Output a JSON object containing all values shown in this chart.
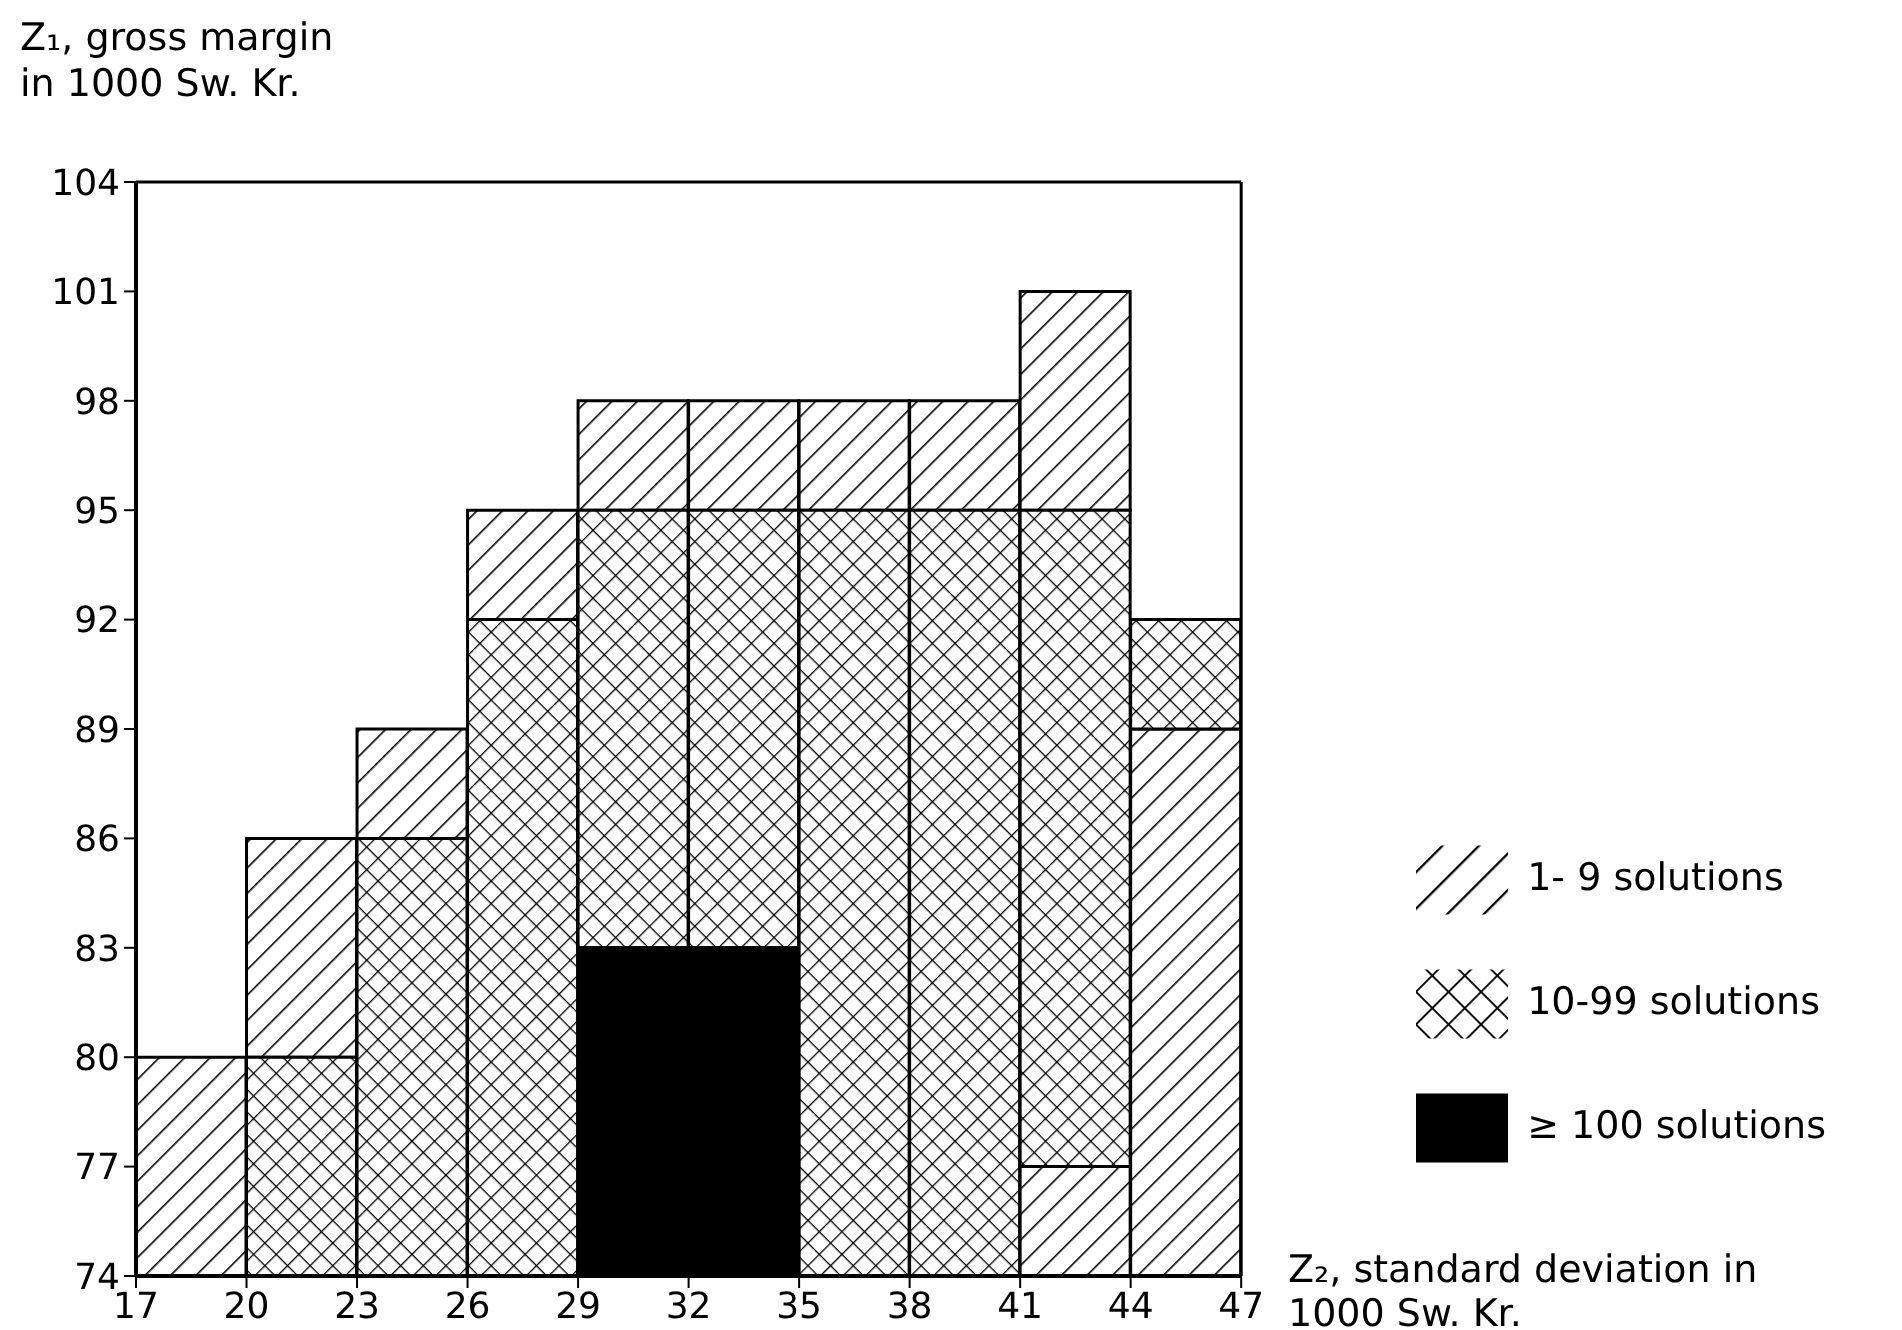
{
  "chart_data": {
    "type": "bar",
    "xlabel": "Z₂, standard deviation in 1000 Sw. Kr.",
    "ylabel": "Z₁, gross margin in 1000 Sw. Kr.",
    "x": [
      18.5,
      21.5,
      24.5,
      27.5,
      30.5,
      33.5,
      36.5,
      39.5,
      42.5,
      45.5
    ],
    "series": [
      {
        "name": "1- 9 solutions",
        "color": "#000000",
        "base": [
          74,
          80,
          86,
          92,
          95,
          95,
          95,
          95,
          95,
          74
        ],
        "values": [
          6,
          6,
          3,
          3,
          3,
          3,
          3,
          3,
          6,
          15
        ]
      },
      {
        "name": "10-99 solutions",
        "color": "#000000",
        "base": [
          null,
          74,
          74,
          74,
          83,
          83,
          74,
          74,
          77,
          89
        ],
        "values": [
          null,
          6,
          12,
          18,
          12,
          12,
          21,
          21,
          18,
          3
        ]
      },
      {
        "name": "≥ 100 solutions",
        "color": "#000000",
        "base": [
          null,
          null,
          null,
          null,
          74,
          74,
          null,
          null,
          null,
          null
        ],
        "values": [
          null,
          null,
          null,
          null,
          9,
          9,
          null,
          null,
          null,
          null
        ]
      },
      {
        "color": "#000000",
        "base": [
          null,
          null,
          null,
          null,
          null,
          null,
          null,
          null,
          74,
          null
        ],
        "values": [
          null,
          null,
          null,
          null,
          null,
          null,
          null,
          null,
          3,
          null
        ]
      }
    ],
    "xlim": [
      17,
      47
    ],
    "xticks": [
      17,
      20,
      23,
      26,
      29,
      32,
      35,
      38,
      41,
      44,
      47
    ],
    "ylim": [
      74,
      104
    ],
    "yticks": [
      74,
      77,
      80,
      83,
      86,
      89,
      92,
      95,
      98,
      101,
      104
    ],
    "grid": false,
    "legend": "right"
  }
}
